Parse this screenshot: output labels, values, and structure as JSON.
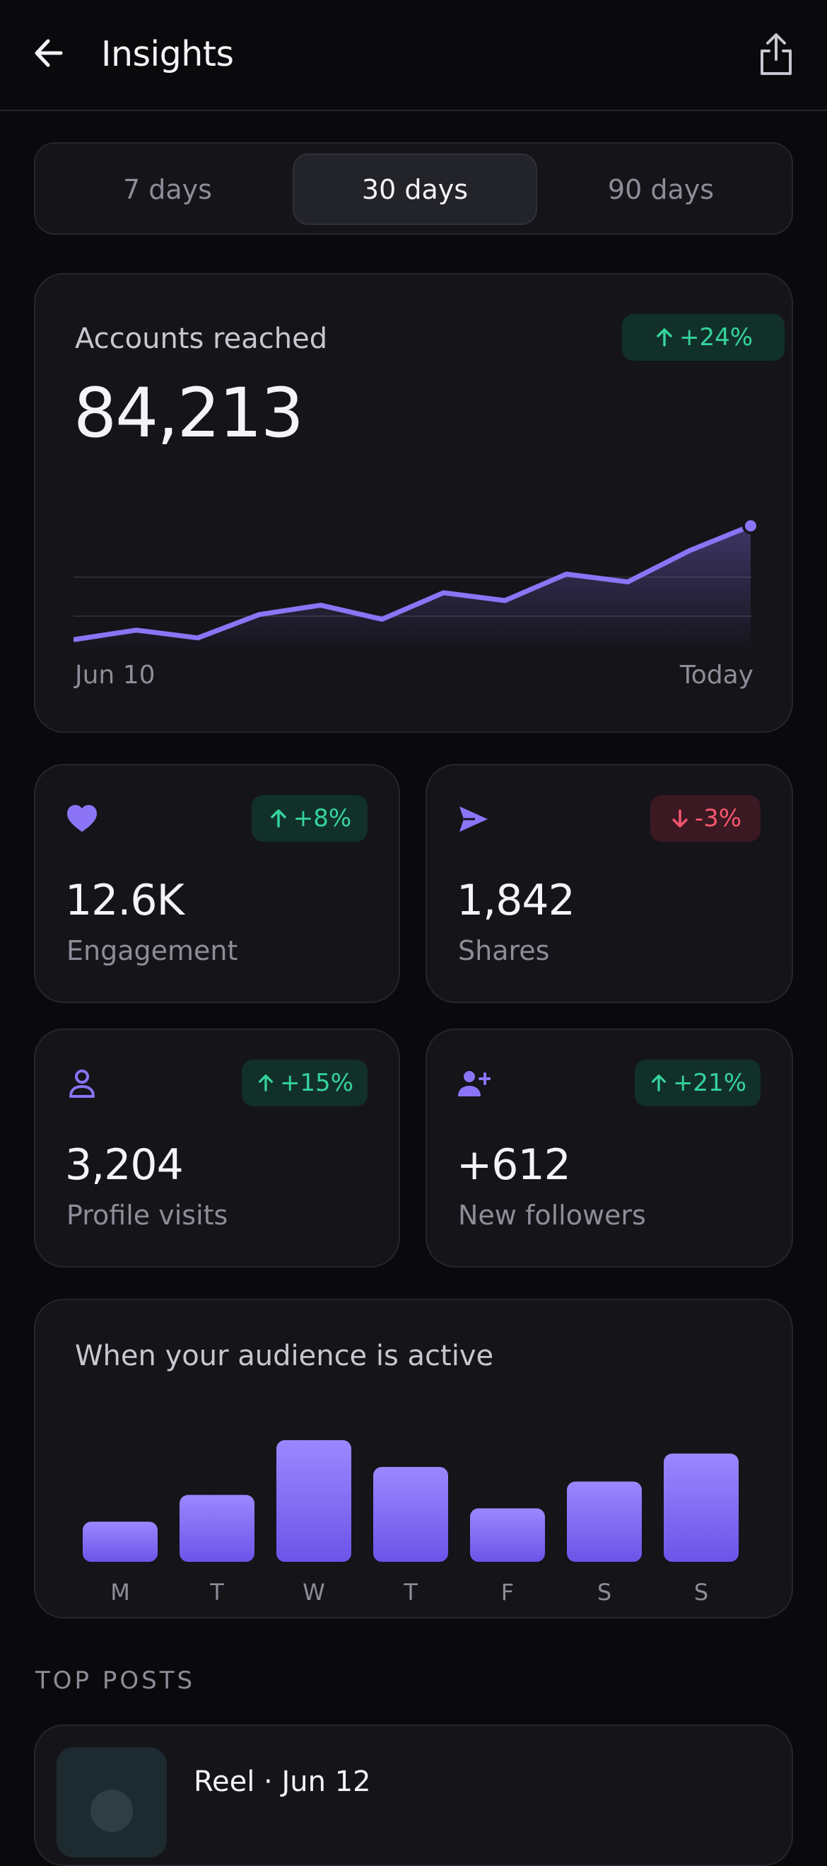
{
  "header": {
    "title": "Insights",
    "back_icon": "arrow-left-icon",
    "share_icon": "share-icon"
  },
  "range_tabs": [
    {
      "label": "7 days",
      "active": false
    },
    {
      "label": "30 days",
      "active": true
    },
    {
      "label": "90 days",
      "active": false
    }
  ],
  "reach": {
    "label": "Accounts reached",
    "value": "84,213",
    "change": "+24%",
    "change_dir": "up",
    "start_label": "Jun 10",
    "end_label": "Today"
  },
  "chart_data": [
    {
      "type": "area",
      "title": "",
      "x": [
        "Jun 10",
        "",
        "",
        "",
        "",
        "",
        "",
        "",
        "",
        "",
        "",
        "Today"
      ],
      "series": [
        {
          "values": [
            1.0,
            1.6,
            1.1,
            2.6,
            3.2,
            2.3,
            4.0,
            3.5,
            5.2,
            4.7,
            6.7,
            8.3
          ]
        }
      ],
      "xlabel": "",
      "ylabel": "",
      "ylim": [
        0,
        10
      ],
      "grid": true,
      "color": "#8b74f5"
    },
    {
      "type": "bar",
      "title": "When your audience is active",
      "categories": [
        "M",
        "T",
        "W",
        "T",
        "F",
        "S",
        "S"
      ],
      "values": [
        33,
        55,
        100,
        78,
        44,
        66,
        89
      ],
      "ylim": [
        0,
        100
      ],
      "color": "#8b74f5"
    }
  ],
  "stats": [
    {
      "icon": "heart-icon",
      "value": "12.6K",
      "label": "Engagement",
      "change": "+8%",
      "dir": "up"
    },
    {
      "icon": "send-icon",
      "value": "1,842",
      "label": "Shares",
      "change": "-3%",
      "dir": "down"
    },
    {
      "icon": "user-icon",
      "value": "3,204",
      "label": "Profile visits",
      "change": "+15%",
      "dir": "up"
    },
    {
      "icon": "user-plus-icon",
      "value": "+612",
      "label": "New followers",
      "change": "+21%",
      "dir": "up"
    }
  ],
  "activity": {
    "title": "When your audience is active"
  },
  "top_posts": {
    "section_title": "TOP POSTS",
    "items": [
      {
        "title": "Reel · Jun 12"
      }
    ]
  },
  "colors": {
    "accent": "#8b74f5",
    "positive": "#35d39c",
    "negative": "#f4566f",
    "background": "#0a0a0d",
    "card": "#141419"
  }
}
